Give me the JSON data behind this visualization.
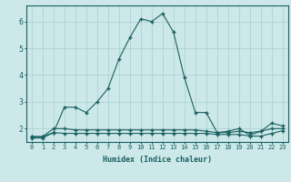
{
  "xlabel": "Humidex (Indice chaleur)",
  "bg_color": "#cce8e8",
  "grid_color": "#aacfcf",
  "line_color": "#1a6060",
  "xmin": -0.5,
  "xmax": 23.5,
  "ymin": 1.5,
  "ymax": 6.6,
  "yticks": [
    2,
    3,
    4,
    5,
    6
  ],
  "xticks": [
    0,
    1,
    2,
    3,
    4,
    5,
    6,
    7,
    8,
    9,
    10,
    11,
    12,
    13,
    14,
    15,
    16,
    17,
    18,
    19,
    20,
    21,
    22,
    23
  ],
  "series_max": [
    1.7,
    1.7,
    1.85,
    2.8,
    2.8,
    2.6,
    3.0,
    3.5,
    4.6,
    5.4,
    6.1,
    6.0,
    6.3,
    5.6,
    3.9,
    2.6,
    2.6,
    1.85,
    1.9,
    2.0,
    1.75,
    1.9,
    2.2,
    2.1
  ],
  "series_mean": [
    1.7,
    1.7,
    2.0,
    2.0,
    1.95,
    1.95,
    1.95,
    1.95,
    1.95,
    1.95,
    1.95,
    1.95,
    1.95,
    1.95,
    1.95,
    1.95,
    1.9,
    1.85,
    1.85,
    1.9,
    1.85,
    1.9,
    2.0,
    2.0
  ],
  "series_min": [
    1.65,
    1.65,
    1.85,
    1.82,
    1.82,
    1.82,
    1.82,
    1.82,
    1.82,
    1.82,
    1.82,
    1.82,
    1.82,
    1.82,
    1.82,
    1.82,
    1.82,
    1.78,
    1.78,
    1.78,
    1.72,
    1.72,
    1.82,
    1.92
  ]
}
